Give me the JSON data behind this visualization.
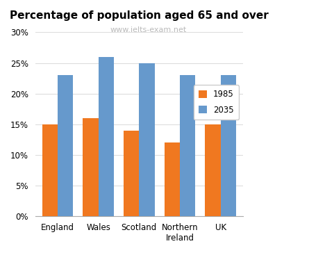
{
  "title": "Percentage of population aged 65 and over",
  "subtitle": "www.ielts-exam.net",
  "categories": [
    "England",
    "Wales",
    "Scotland",
    "Northern\nIreland",
    "UK"
  ],
  "values_1985": [
    15,
    16,
    14,
    12,
    15
  ],
  "values_2035": [
    23,
    26,
    25,
    23,
    23
  ],
  "color_1985": "#F07820",
  "color_2035": "#6699CC",
  "legend_labels": [
    "1985",
    "2035"
  ],
  "ylim": [
    0,
    30
  ],
  "yticks": [
    0,
    5,
    10,
    15,
    20,
    25,
    30
  ],
  "ytick_labels": [
    "0%",
    "5%",
    "10%",
    "15%",
    "20%",
    "25%",
    "30%"
  ],
  "title_fontsize": 11,
  "subtitle_color": "#BBBBBB",
  "subtitle_fontsize": 8,
  "bar_width": 0.38,
  "grid_color": "#DDDDDD"
}
